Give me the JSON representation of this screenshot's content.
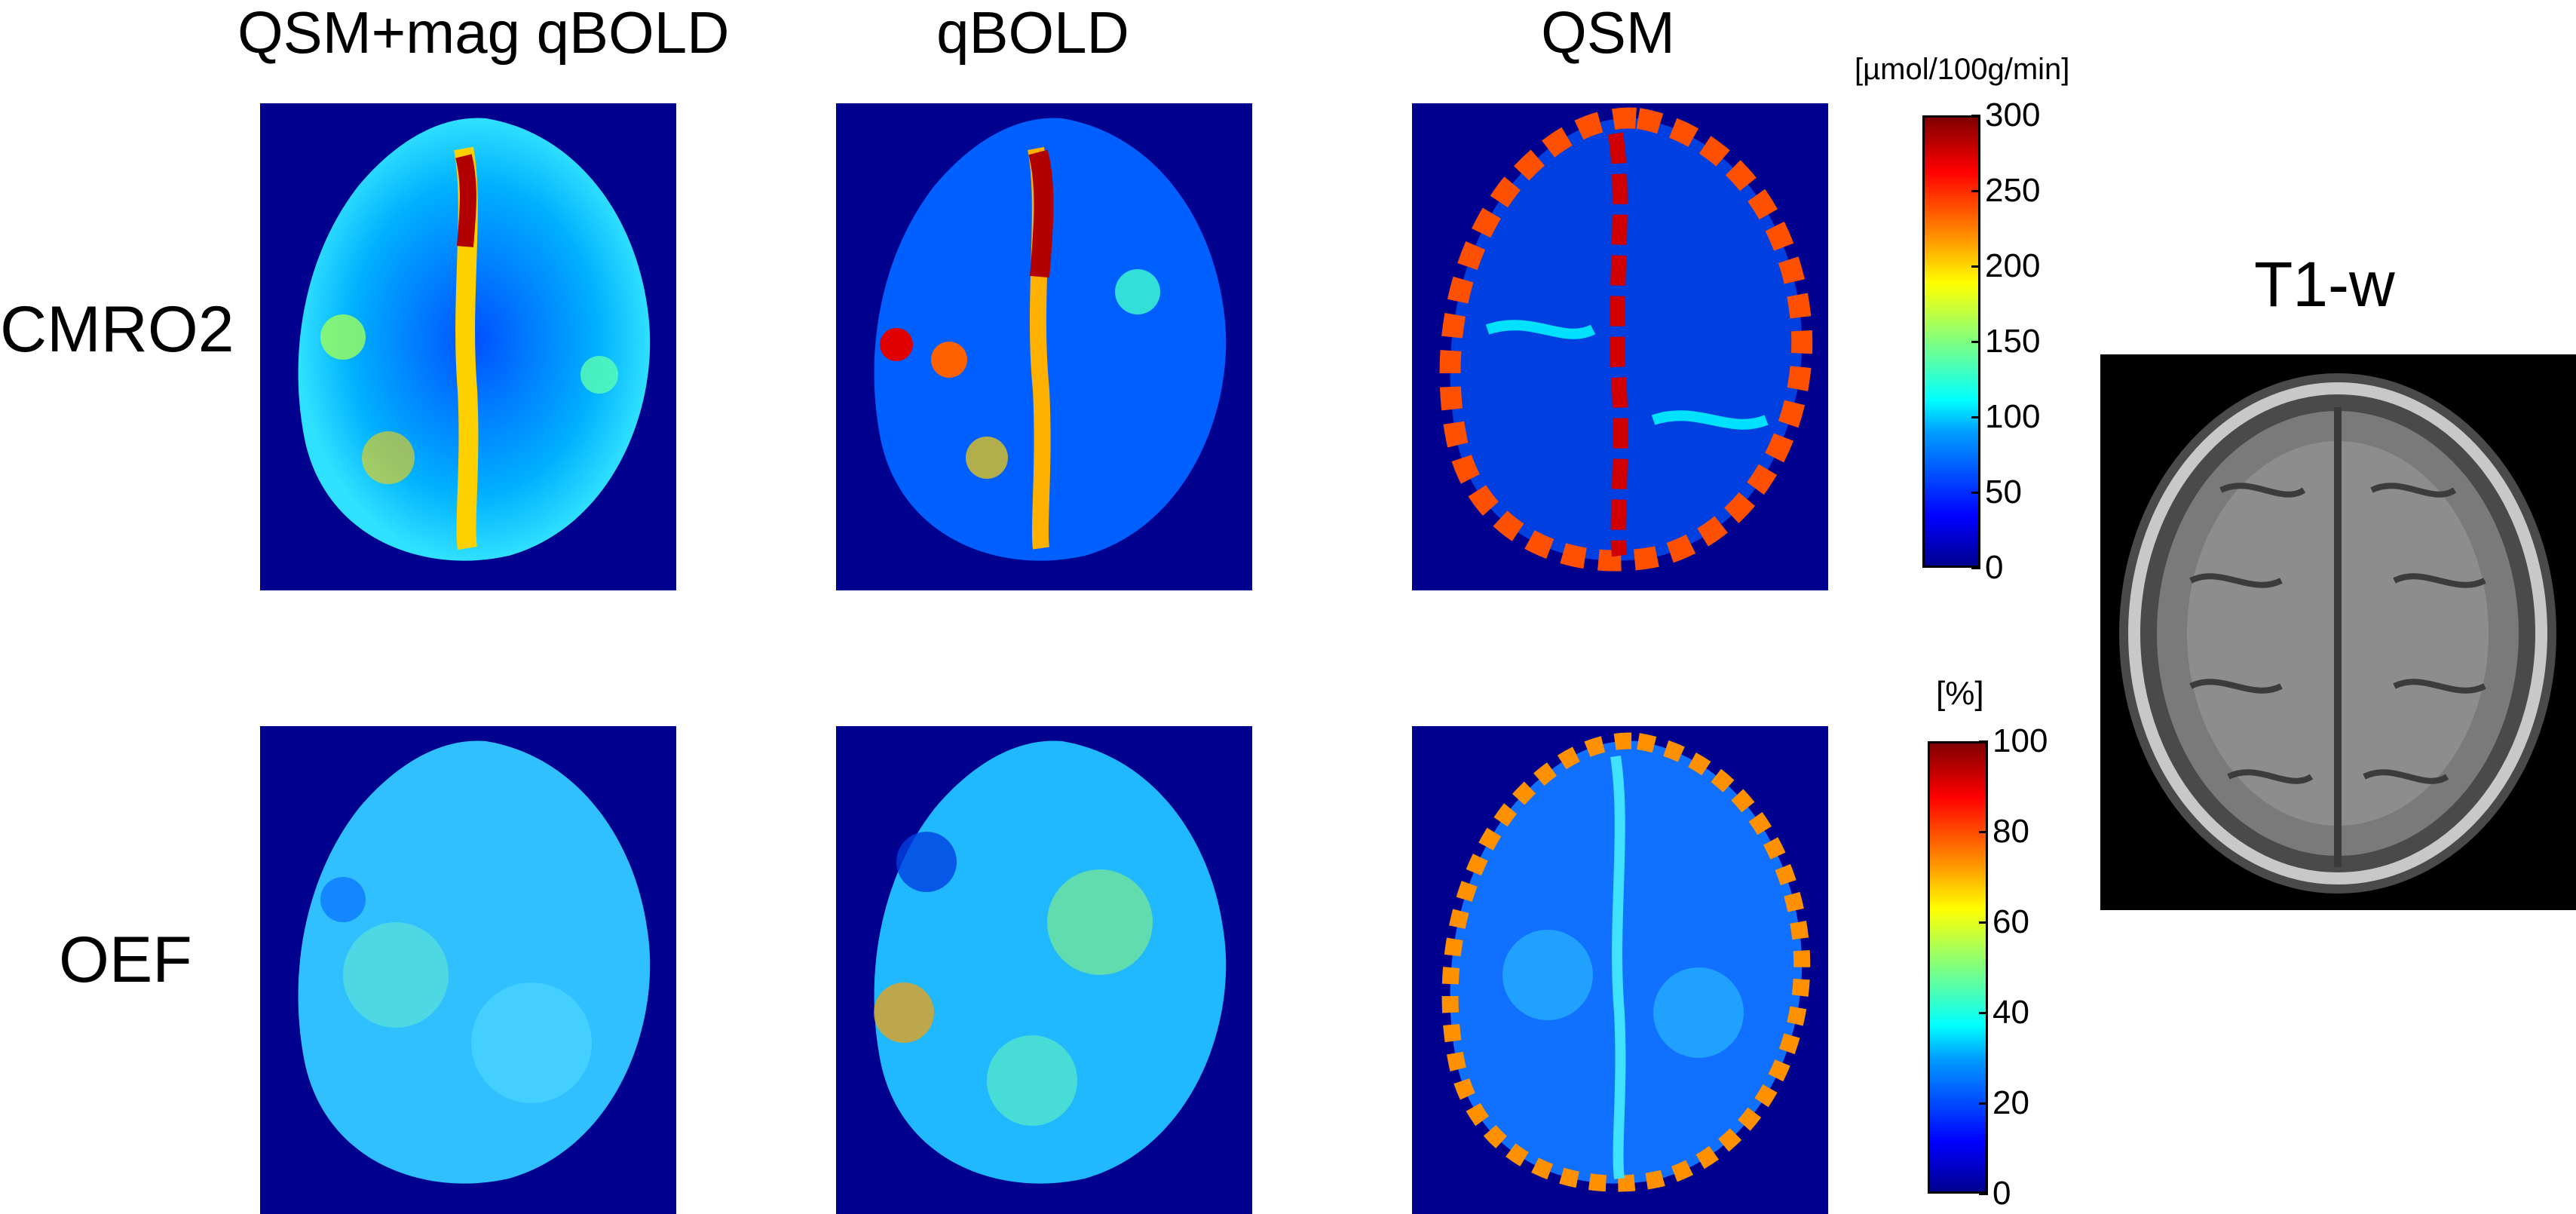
{
  "figure": {
    "columns": [
      {
        "id": "qsm-mag-qbold",
        "title": "QSM+mag qBOLD"
      },
      {
        "id": "qbold",
        "title": "qBOLD"
      },
      {
        "id": "qsm",
        "title": "QSM"
      }
    ],
    "rows": [
      {
        "id": "cmro2",
        "label": "CMRO2"
      },
      {
        "id": "oef",
        "label": "OEF"
      }
    ],
    "colorbars": {
      "cmro2": {
        "unit": "[µmol/100g/min]",
        "ticks": [
          "300",
          "250",
          "200",
          "150",
          "100",
          "50",
          "0"
        ],
        "range": [
          0,
          300
        ],
        "colormap": "jet"
      },
      "oef": {
        "unit": "[%]",
        "ticks": [
          "100",
          "80",
          "60",
          "40",
          "20",
          "0"
        ],
        "range": [
          0,
          100
        ],
        "colormap": "jet"
      }
    },
    "reference": {
      "title": "T1-w"
    },
    "colors": {
      "map_background": "#00008f",
      "t1_background": "#000000"
    }
  }
}
